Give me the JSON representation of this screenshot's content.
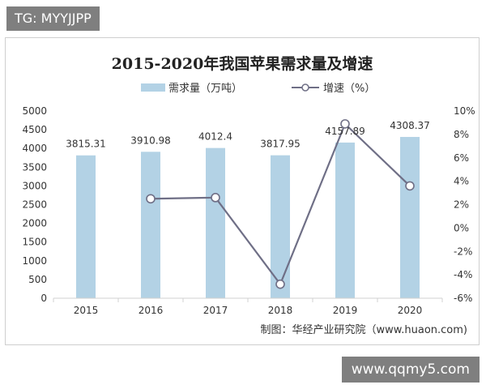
{
  "watermark_top": "TG: MYYJJPP",
  "watermark_bottom": "www.qqmy5.com",
  "chart_data": {
    "type": "bar",
    "title": "2015-2020年我国苹果需求量及增速",
    "source": "制图：华经产业研究院（www.huaon.com)",
    "categories": [
      "2015",
      "2016",
      "2017",
      "2018",
      "2019",
      "2020"
    ],
    "series": [
      {
        "name": "需求量（万吨）",
        "type": "bar",
        "axis": "left",
        "color": "#b3d2e5",
        "values": [
          3815.31,
          3910.98,
          4012.4,
          3817.95,
          4157.89,
          4308.37
        ],
        "labels": [
          "3815.31",
          "3910.98",
          "4012.4",
          "3817.95",
          "4157.89",
          "4308.37"
        ]
      },
      {
        "name": "增速（%）",
        "type": "line",
        "axis": "right",
        "color": "#6f6f86",
        "values": [
          null,
          2.5,
          2.6,
          -4.8,
          8.9,
          3.6
        ]
      }
    ],
    "y_left": {
      "lim": [
        0,
        5000
      ],
      "ticks": [
        "0",
        "500",
        "1000",
        "1500",
        "2000",
        "2500",
        "3000",
        "3500",
        "4000",
        "4500",
        "5000"
      ]
    },
    "y_right": {
      "lim": [
        -6,
        10
      ],
      "ticks": [
        "-6%",
        "-4%",
        "-2%",
        "0%",
        "2%",
        "4%",
        "6%",
        "8%",
        "10%"
      ]
    },
    "grid": false,
    "legend": "top"
  }
}
